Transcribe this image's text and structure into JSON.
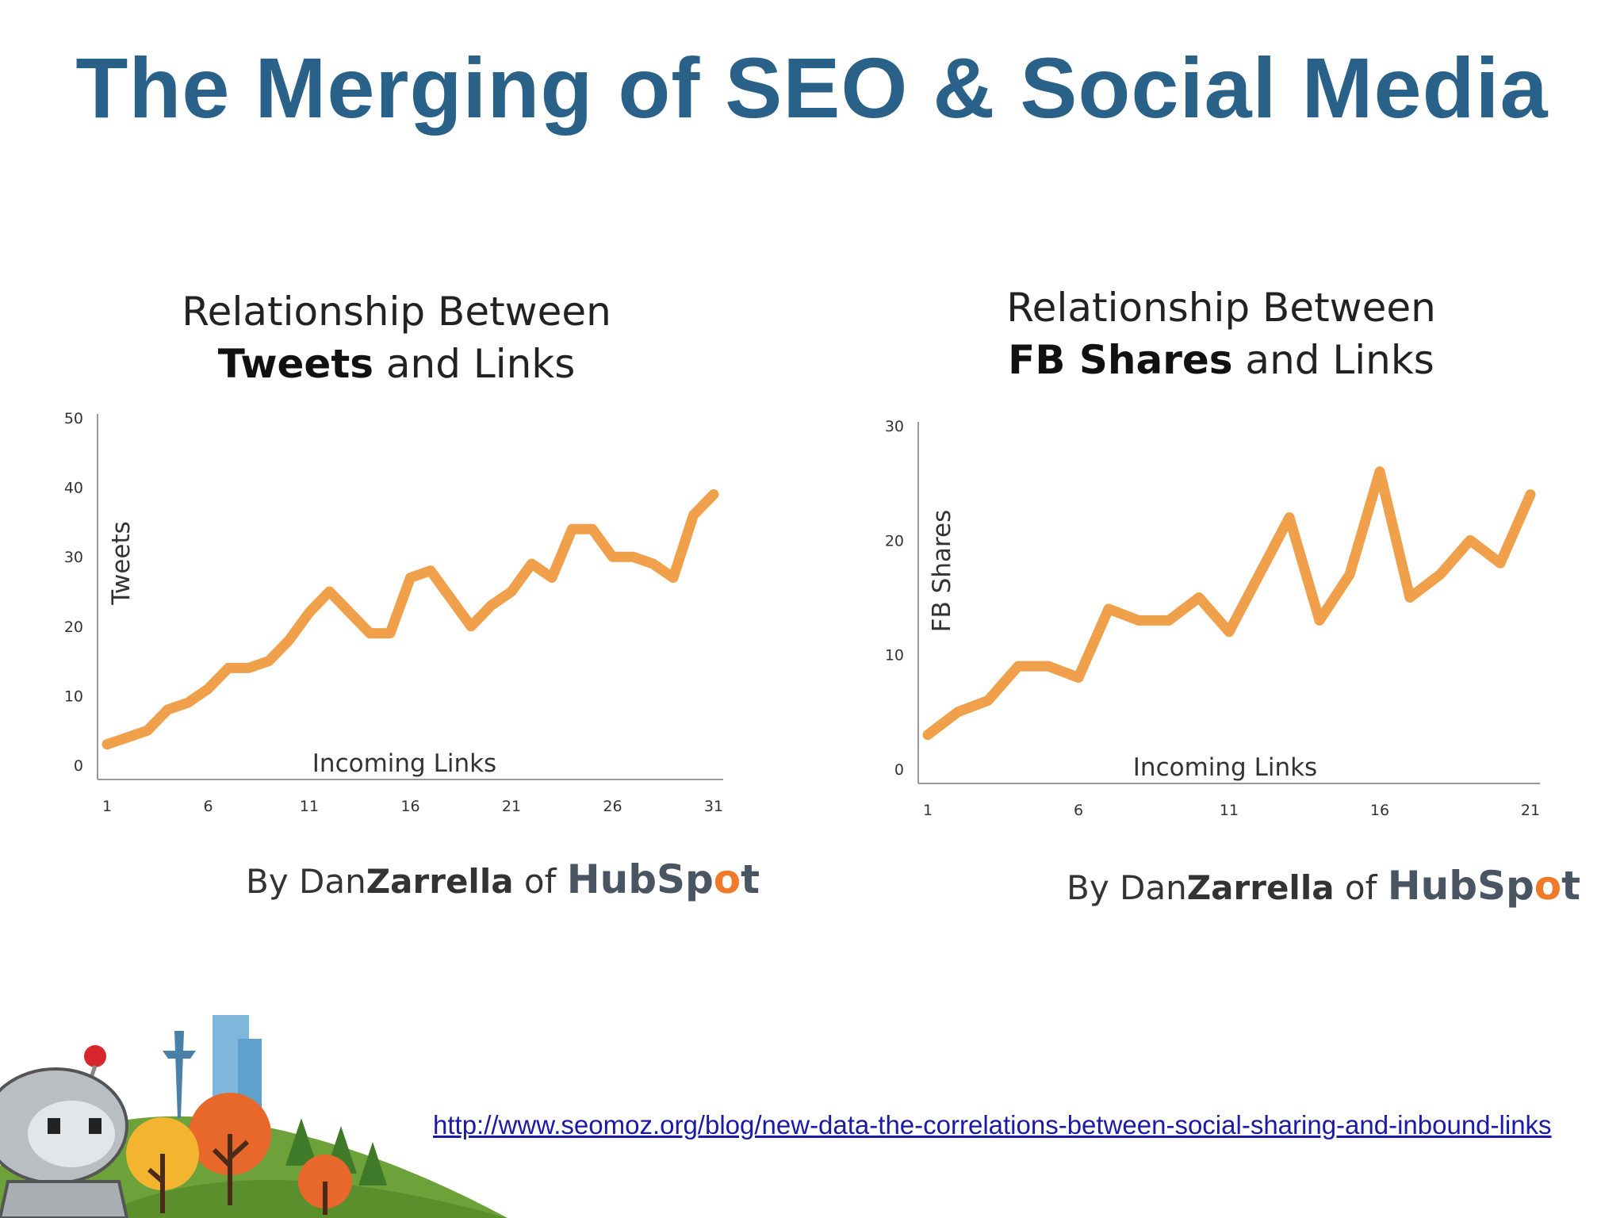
{
  "slide": {
    "title": "The Merging of SEO & Social Media",
    "source_url": "http://www.seomoz.org/blog/new-data-the-correlations-between-social-sharing-and-inbound-links"
  },
  "credit": {
    "by": "By Dan",
    "author_bold": "Zarrella",
    "of": " of ",
    "brand_prefix": "HubSp",
    "brand_o": "o",
    "brand_suffix": "t"
  },
  "colors": {
    "title": "#296189",
    "line": "#f0a04b",
    "brand_accent": "#f07a2a"
  },
  "chart_data": [
    {
      "type": "line",
      "title_line1": "Relationship Between",
      "title_bold": "Tweets",
      "title_rest": " and Links",
      "xlabel": "Incoming Links",
      "ylabel": "Tweets",
      "x_ticks": [
        1,
        6,
        11,
        16,
        21,
        26,
        31
      ],
      "y_ticks": [
        0,
        10,
        20,
        30,
        40,
        50
      ],
      "xlim": [
        1,
        31
      ],
      "ylim": [
        0,
        50
      ],
      "x": [
        1,
        2,
        3,
        4,
        5,
        6,
        7,
        8,
        9,
        10,
        11,
        12,
        13,
        14,
        15,
        16,
        17,
        18,
        19,
        20,
        21,
        22,
        23,
        24,
        25,
        26,
        27,
        28,
        29,
        30,
        31
      ],
      "series": [
        {
          "values": [
            3,
            4,
            5,
            8,
            9,
            11,
            14,
            14,
            15,
            18,
            22,
            25,
            22,
            19,
            19,
            27,
            28,
            24,
            20,
            23,
            25,
            29,
            27,
            34,
            34,
            30,
            30,
            29,
            27,
            36,
            39
          ]
        }
      ]
    },
    {
      "type": "line",
      "title_line1": "Relationship Between",
      "title_bold": "FB Shares",
      "title_rest": " and Links",
      "xlabel": "Incoming Links",
      "ylabel": "FB Shares",
      "x_ticks": [
        1,
        6,
        11,
        16,
        21
      ],
      "y_ticks": [
        0,
        10,
        20,
        30
      ],
      "xlim": [
        1,
        21
      ],
      "ylim": [
        0,
        30
      ],
      "x": [
        1,
        2,
        3,
        4,
        5,
        6,
        7,
        8,
        9,
        10,
        11,
        12,
        13,
        14,
        15,
        16,
        17,
        18,
        19,
        20,
        21
      ],
      "series": [
        {
          "values": [
            3,
            5,
            6,
            9,
            9,
            8,
            14,
            13,
            13,
            15,
            12,
            17,
            22,
            13,
            17,
            26,
            15,
            17,
            20,
            18,
            24
          ]
        }
      ]
    }
  ]
}
